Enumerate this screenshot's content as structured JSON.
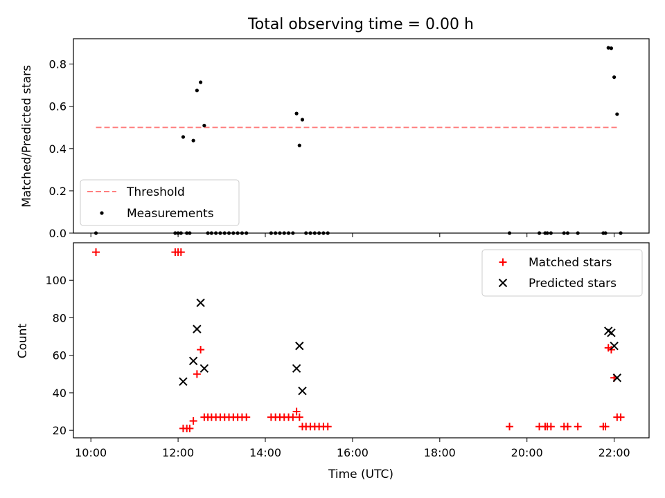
{
  "chart_data": [
    {
      "panel": "top",
      "type": "scatter",
      "title": "Total observing time = 0.00 h",
      "xlabel": "",
      "ylabel": "Matched/Predicted stars",
      "ylim": [
        0.0,
        0.92
      ],
      "xlim_hours": [
        9.6,
        22.8
      ],
      "yticks": [
        0.0,
        0.2,
        0.4,
        0.6,
        0.8
      ],
      "ytick_labels": [
        "0.0",
        "0.2",
        "0.4",
        "0.6",
        "0.8"
      ],
      "grid": false,
      "legend_position": "lower-left",
      "threshold": {
        "name": "Threshold",
        "color": "#ff7f7f",
        "style": "dashed",
        "value": 0.5,
        "x_start": "10:07",
        "x_end": "22:05"
      },
      "series": [
        {
          "name": "Measurements",
          "marker": "dot",
          "color": "#000000",
          "points": [
            {
              "x": "10:07",
              "y": 0.0
            },
            {
              "x": "11:56",
              "y": 0.0
            },
            {
              "x": "12:00",
              "y": 0.0
            },
            {
              "x": "12:04",
              "y": 0.0
            },
            {
              "x": "12:07",
              "y": 0.455
            },
            {
              "x": "12:12",
              "y": 0.0
            },
            {
              "x": "12:16",
              "y": 0.0
            },
            {
              "x": "12:21",
              "y": 0.438
            },
            {
              "x": "12:26",
              "y": 0.675
            },
            {
              "x": "12:31",
              "y": 0.714
            },
            {
              "x": "12:36",
              "y": 0.509
            },
            {
              "x": "12:41",
              "y": 0.0
            },
            {
              "x": "12:46",
              "y": 0.0
            },
            {
              "x": "12:52",
              "y": 0.0
            },
            {
              "x": "12:58",
              "y": 0.0
            },
            {
              "x": "13:04",
              "y": 0.0
            },
            {
              "x": "13:10",
              "y": 0.0
            },
            {
              "x": "13:16",
              "y": 0.0
            },
            {
              "x": "13:22",
              "y": 0.0
            },
            {
              "x": "13:28",
              "y": 0.0
            },
            {
              "x": "13:34",
              "y": 0.0
            },
            {
              "x": "14:08",
              "y": 0.0
            },
            {
              "x": "14:14",
              "y": 0.0
            },
            {
              "x": "14:20",
              "y": 0.0
            },
            {
              "x": "14:26",
              "y": 0.0
            },
            {
              "x": "14:32",
              "y": 0.0
            },
            {
              "x": "14:38",
              "y": 0.0
            },
            {
              "x": "14:43",
              "y": 0.566
            },
            {
              "x": "14:47",
              "y": 0.415
            },
            {
              "x": "14:51",
              "y": 0.537
            },
            {
              "x": "14:56",
              "y": 0.0
            },
            {
              "x": "15:02",
              "y": 0.0
            },
            {
              "x": "15:08",
              "y": 0.0
            },
            {
              "x": "15:14",
              "y": 0.0
            },
            {
              "x": "15:20",
              "y": 0.0
            },
            {
              "x": "15:26",
              "y": 0.0
            },
            {
              "x": "19:36",
              "y": 0.0
            },
            {
              "x": "20:17",
              "y": 0.0
            },
            {
              "x": "20:25",
              "y": 0.0
            },
            {
              "x": "20:28",
              "y": 0.0
            },
            {
              "x": "20:33",
              "y": 0.0
            },
            {
              "x": "20:51",
              "y": 0.0
            },
            {
              "x": "20:56",
              "y": 0.0
            },
            {
              "x": "21:10",
              "y": 0.0
            },
            {
              "x": "21:45",
              "y": 0.0
            },
            {
              "x": "21:48",
              "y": 0.0
            },
            {
              "x": "21:52",
              "y": 0.877
            },
            {
              "x": "21:56",
              "y": 0.875
            },
            {
              "x": "22:00",
              "y": 0.738
            },
            {
              "x": "22:04",
              "y": 0.563
            },
            {
              "x": "22:09",
              "y": 0.0
            }
          ]
        }
      ]
    },
    {
      "panel": "bottom",
      "type": "scatter",
      "title": "",
      "xlabel": "Time (UTC)",
      "ylabel": "Count",
      "ylim": [
        16,
        120
      ],
      "xlim_hours": [
        9.6,
        22.8
      ],
      "yticks": [
        20,
        40,
        60,
        80,
        100
      ],
      "ytick_labels": [
        "20",
        "40",
        "60",
        "80",
        "100"
      ],
      "xticks": [
        "10:00",
        "12:00",
        "14:00",
        "16:00",
        "18:00",
        "20:00",
        "22:00"
      ],
      "grid": false,
      "legend_position": "upper-right",
      "series": [
        {
          "name": "Matched stars",
          "marker": "plus",
          "color": "#ff0000",
          "points": [
            {
              "x": "10:07",
              "y": 115
            },
            {
              "x": "11:56",
              "y": 115
            },
            {
              "x": "12:00",
              "y": 115
            },
            {
              "x": "12:04",
              "y": 115
            },
            {
              "x": "12:07",
              "y": 21
            },
            {
              "x": "12:12",
              "y": 21
            },
            {
              "x": "12:16",
              "y": 21
            },
            {
              "x": "12:21",
              "y": 25
            },
            {
              "x": "12:26",
              "y": 50
            },
            {
              "x": "12:31",
              "y": 63
            },
            {
              "x": "12:36",
              "y": 27
            },
            {
              "x": "12:41",
              "y": 27
            },
            {
              "x": "12:46",
              "y": 27
            },
            {
              "x": "12:52",
              "y": 27
            },
            {
              "x": "12:58",
              "y": 27
            },
            {
              "x": "13:04",
              "y": 27
            },
            {
              "x": "13:10",
              "y": 27
            },
            {
              "x": "13:16",
              "y": 27
            },
            {
              "x": "13:22",
              "y": 27
            },
            {
              "x": "13:28",
              "y": 27
            },
            {
              "x": "13:34",
              "y": 27
            },
            {
              "x": "14:08",
              "y": 27
            },
            {
              "x": "14:14",
              "y": 27
            },
            {
              "x": "14:20",
              "y": 27
            },
            {
              "x": "14:26",
              "y": 27
            },
            {
              "x": "14:32",
              "y": 27
            },
            {
              "x": "14:38",
              "y": 27
            },
            {
              "x": "14:43",
              "y": 30
            },
            {
              "x": "14:47",
              "y": 27
            },
            {
              "x": "14:51",
              "y": 22
            },
            {
              "x": "14:56",
              "y": 22
            },
            {
              "x": "15:02",
              "y": 22
            },
            {
              "x": "15:08",
              "y": 22
            },
            {
              "x": "15:14",
              "y": 22
            },
            {
              "x": "15:20",
              "y": 22
            },
            {
              "x": "15:26",
              "y": 22
            },
            {
              "x": "19:36",
              "y": 22
            },
            {
              "x": "20:17",
              "y": 22
            },
            {
              "x": "20:25",
              "y": 22
            },
            {
              "x": "20:28",
              "y": 22
            },
            {
              "x": "20:33",
              "y": 22
            },
            {
              "x": "20:51",
              "y": 22
            },
            {
              "x": "20:56",
              "y": 22
            },
            {
              "x": "21:10",
              "y": 22
            },
            {
              "x": "21:45",
              "y": 22
            },
            {
              "x": "21:48",
              "y": 22
            },
            {
              "x": "21:52",
              "y": 64
            },
            {
              "x": "21:56",
              "y": 63
            },
            {
              "x": "22:00",
              "y": 48
            },
            {
              "x": "22:04",
              "y": 27
            },
            {
              "x": "22:09",
              "y": 27
            }
          ]
        },
        {
          "name": "Predicted stars",
          "marker": "x",
          "color": "#000000",
          "points": [
            {
              "x": "12:07",
              "y": 46
            },
            {
              "x": "12:21",
              "y": 57
            },
            {
              "x": "12:26",
              "y": 74
            },
            {
              "x": "12:31",
              "y": 88
            },
            {
              "x": "12:36",
              "y": 53
            },
            {
              "x": "14:43",
              "y": 53
            },
            {
              "x": "14:47",
              "y": 65
            },
            {
              "x": "14:51",
              "y": 41
            },
            {
              "x": "21:52",
              "y": 73
            },
            {
              "x": "21:56",
              "y": 72
            },
            {
              "x": "22:00",
              "y": 65
            },
            {
              "x": "22:04",
              "y": 48
            }
          ]
        }
      ]
    }
  ]
}
